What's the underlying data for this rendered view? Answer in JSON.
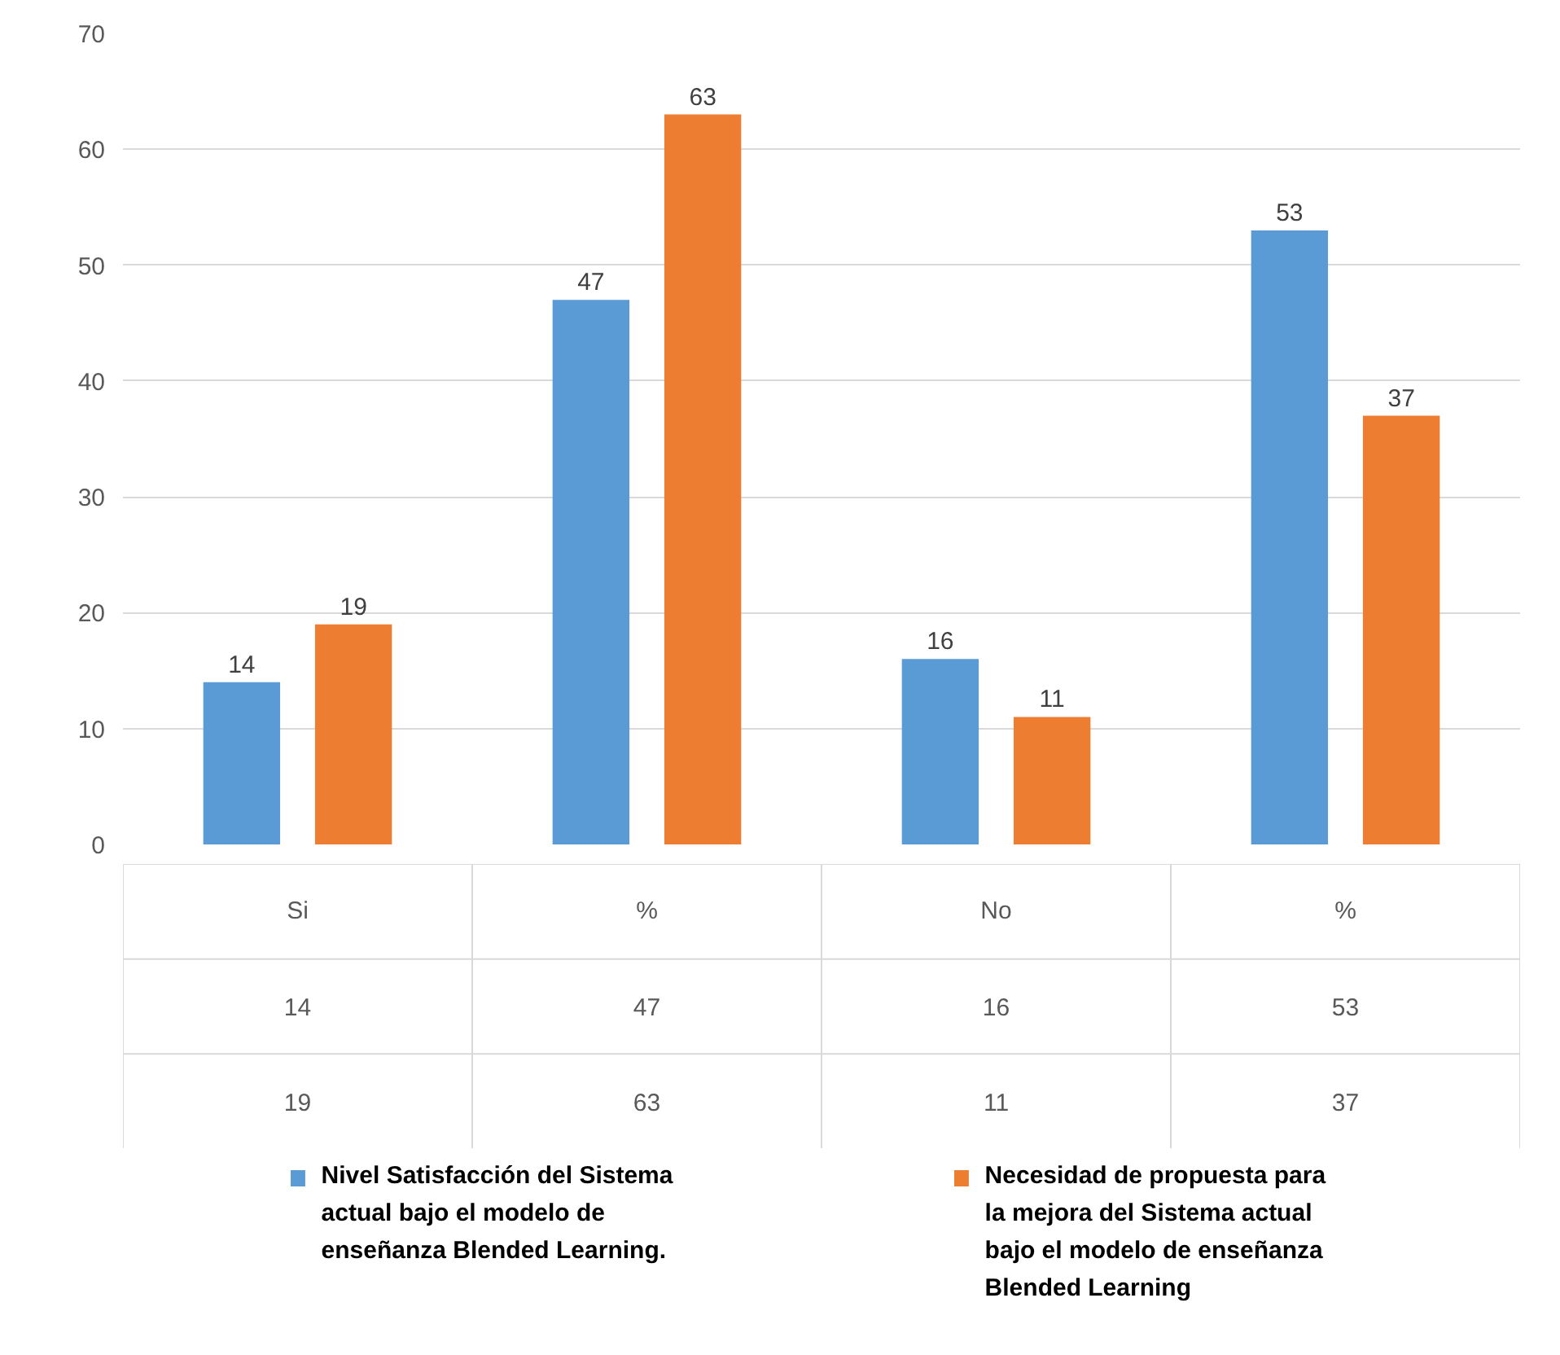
{
  "chart_data": {
    "type": "bar",
    "categories": [
      "Si",
      "%",
      "No",
      "%"
    ],
    "series": [
      {
        "name": "Nivel Satisfacción del Sistema actual bajo el modelo de enseñanza Blended Learning.",
        "color": "#5b9bd5",
        "values": [
          14,
          47,
          16,
          53
        ],
        "value_labels": [
          "14",
          "47",
          "16",
          "53"
        ]
      },
      {
        "name": "Necesidad de propuesta para la mejora del Sistema actual bajo el modelo de enseñanza Blended Learning",
        "color": "#ed7d31",
        "values": [
          19,
          63,
          11,
          37
        ],
        "value_labels": [
          "19",
          "63",
          "11",
          "37"
        ]
      }
    ],
    "ylim": [
      0,
      70
    ],
    "yticks": [
      0,
      10,
      20,
      30,
      40,
      50,
      60,
      70
    ],
    "grid": "y",
    "legend": "bottom",
    "data_labels": true
  }
}
